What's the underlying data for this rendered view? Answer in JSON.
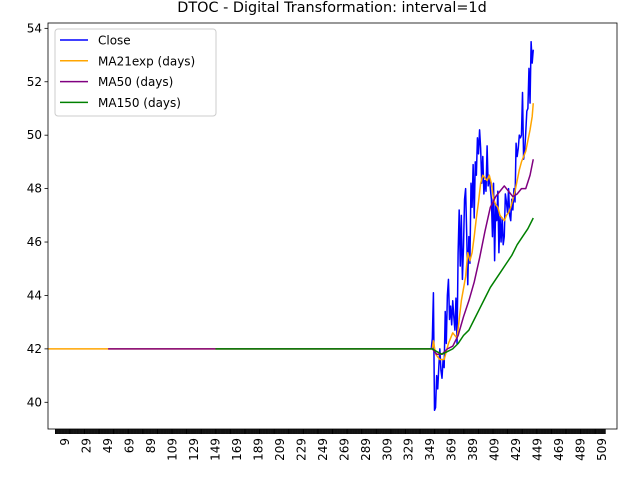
{
  "chart_data": {
    "type": "line",
    "title": "DTOC - Digital Transformation: interval=1d",
    "xlabel": "",
    "ylabel": "",
    "xlim": [
      -7,
      523
    ],
    "ylim": [
      39,
      54.2
    ],
    "yticks": [
      40,
      42,
      44,
      46,
      48,
      50,
      52,
      54
    ],
    "xticks": [
      9,
      29,
      49,
      69,
      89,
      109,
      129,
      149,
      169,
      189,
      209,
      229,
      249,
      269,
      289,
      309,
      329,
      349,
      369,
      389,
      409,
      429,
      449,
      469,
      489,
      509
    ],
    "legend": {
      "placement": "top-left"
    },
    "grid": false,
    "series": [
      {
        "name": "Close",
        "color": "#0000ff",
        "points": [
          [
            350,
            42.0
          ],
          [
            351,
            42.4
          ],
          [
            352,
            44.1
          ],
          [
            353,
            39.7
          ],
          [
            354,
            39.8
          ],
          [
            355,
            41.0
          ],
          [
            356,
            40.5
          ],
          [
            357,
            41.3
          ],
          [
            358,
            42.0
          ],
          [
            359,
            41.2
          ],
          [
            360,
            40.9
          ],
          [
            361,
            41.6
          ],
          [
            362,
            41.3
          ],
          [
            363,
            43.4
          ],
          [
            364,
            42.2
          ],
          [
            365,
            44.0
          ],
          [
            366,
            44.6
          ],
          [
            367,
            43.1
          ],
          [
            368,
            43.6
          ],
          [
            369,
            42.9
          ],
          [
            370,
            43.8
          ],
          [
            371,
            43.2
          ],
          [
            372,
            42.7
          ],
          [
            373,
            43.9
          ],
          [
            374,
            42.2
          ],
          [
            375,
            45.6
          ],
          [
            376,
            47.2
          ],
          [
            377,
            45.1
          ],
          [
            378,
            47.0
          ],
          [
            379,
            44.6
          ],
          [
            380,
            45.8
          ],
          [
            381,
            47.6
          ],
          [
            382,
            48.0
          ],
          [
            383,
            46.3
          ],
          [
            384,
            44.4
          ],
          [
            385,
            46.2
          ],
          [
            386,
            45.2
          ],
          [
            387,
            48.2
          ],
          [
            388,
            47.3
          ],
          [
            389,
            48.9
          ],
          [
            390,
            46.9
          ],
          [
            391,
            49.0
          ],
          [
            392,
            48.5
          ],
          [
            393,
            49.9
          ],
          [
            394,
            49.3
          ],
          [
            395,
            50.2
          ],
          [
            396,
            49.5
          ],
          [
            397,
            48.2
          ],
          [
            398,
            49.2
          ],
          [
            399,
            47.8
          ],
          [
            400,
            48.3
          ],
          [
            401,
            47.9
          ],
          [
            402,
            49.6
          ],
          [
            403,
            48.1
          ],
          [
            404,
            48.5
          ],
          [
            405,
            48.0
          ],
          [
            406,
            47.6
          ],
          [
            407,
            46.2
          ],
          [
            408,
            48.2
          ],
          [
            409,
            45.3
          ],
          [
            410,
            47.4
          ],
          [
            411,
            46.8
          ],
          [
            412,
            47.9
          ],
          [
            413,
            45.6
          ],
          [
            414,
            47.0
          ],
          [
            415,
            46.0
          ],
          [
            416,
            46.9
          ],
          [
            417,
            45.9
          ],
          [
            418,
            46.2
          ],
          [
            419,
            47.8
          ],
          [
            420,
            47.5
          ],
          [
            421,
            47.1
          ],
          [
            422,
            48.0
          ],
          [
            423,
            47.0
          ],
          [
            424,
            46.8
          ],
          [
            425,
            47.6
          ],
          [
            426,
            47.2
          ],
          [
            427,
            48.0
          ],
          [
            428,
            47.5
          ],
          [
            429,
            49.7
          ],
          [
            430,
            49.2
          ],
          [
            431,
            49.5
          ],
          [
            432,
            50.0
          ],
          [
            433,
            49.9
          ],
          [
            434,
            50.0
          ],
          [
            435,
            51.6
          ],
          [
            436,
            49.1
          ],
          [
            437,
            49.4
          ],
          [
            438,
            50.1
          ],
          [
            439,
            50.9
          ],
          [
            440,
            51.0
          ],
          [
            441,
            52.5
          ],
          [
            442,
            51.2
          ],
          [
            443,
            53.5
          ],
          [
            444,
            52.7
          ],
          [
            445,
            53.2
          ]
        ]
      },
      {
        "name": "MA21exp (days)",
        "color": "#ffa500",
        "points": [
          [
            -7,
            42.0
          ],
          [
            49,
            42.0
          ],
          [
            351,
            42.0
          ],
          [
            352,
            42.3
          ],
          [
            354,
            41.8
          ],
          [
            358,
            41.6
          ],
          [
            362,
            41.6
          ],
          [
            366,
            42.2
          ],
          [
            370,
            42.6
          ],
          [
            374,
            42.4
          ],
          [
            378,
            43.8
          ],
          [
            382,
            44.7
          ],
          [
            384,
            45.6
          ],
          [
            386,
            45.3
          ],
          [
            388,
            45.6
          ],
          [
            390,
            46.2
          ],
          [
            392,
            46.9
          ],
          [
            394,
            47.5
          ],
          [
            396,
            48.2
          ],
          [
            398,
            48.5
          ],
          [
            400,
            48.4
          ],
          [
            402,
            48.3
          ],
          [
            404,
            48.5
          ],
          [
            406,
            48.2
          ],
          [
            408,
            47.6
          ],
          [
            410,
            47.4
          ],
          [
            412,
            47.3
          ],
          [
            414,
            47.0
          ],
          [
            416,
            46.9
          ],
          [
            418,
            46.8
          ],
          [
            420,
            47.0
          ],
          [
            422,
            47.1
          ],
          [
            424,
            47.3
          ],
          [
            426,
            47.6
          ],
          [
            428,
            47.9
          ],
          [
            430,
            48.3
          ],
          [
            432,
            48.7
          ],
          [
            434,
            49.0
          ],
          [
            436,
            49.2
          ],
          [
            438,
            49.4
          ],
          [
            440,
            49.8
          ],
          [
            442,
            50.2
          ],
          [
            444,
            50.7
          ],
          [
            445,
            51.2
          ]
        ]
      },
      {
        "name": "MA50 (days)",
        "color": "#800080",
        "points": [
          [
            49,
            42.0
          ],
          [
            351,
            42.0
          ],
          [
            355,
            41.8
          ],
          [
            360,
            41.8
          ],
          [
            365,
            42.0
          ],
          [
            370,
            42.1
          ],
          [
            375,
            42.5
          ],
          [
            380,
            43.2
          ],
          [
            385,
            43.8
          ],
          [
            390,
            44.5
          ],
          [
            395,
            45.4
          ],
          [
            400,
            46.4
          ],
          [
            405,
            47.3
          ],
          [
            410,
            47.7
          ],
          [
            414,
            47.9
          ],
          [
            418,
            48.1
          ],
          [
            422,
            47.9
          ],
          [
            426,
            47.7
          ],
          [
            430,
            47.8
          ],
          [
            434,
            48.0
          ],
          [
            438,
            48.0
          ],
          [
            442,
            48.5
          ],
          [
            445,
            49.1
          ]
        ]
      },
      {
        "name": "MA150 (days)",
        "color": "#008000",
        "points": [
          [
            149,
            42.0
          ],
          [
            351,
            42.0
          ],
          [
            355,
            41.9
          ],
          [
            360,
            41.8
          ],
          [
            365,
            41.9
          ],
          [
            370,
            42.0
          ],
          [
            375,
            42.2
          ],
          [
            380,
            42.5
          ],
          [
            385,
            42.7
          ],
          [
            390,
            43.1
          ],
          [
            395,
            43.5
          ],
          [
            400,
            43.9
          ],
          [
            405,
            44.3
          ],
          [
            410,
            44.6
          ],
          [
            415,
            44.9
          ],
          [
            420,
            45.2
          ],
          [
            425,
            45.5
          ],
          [
            430,
            45.9
          ],
          [
            435,
            46.2
          ],
          [
            440,
            46.5
          ],
          [
            445,
            46.9
          ]
        ]
      }
    ]
  }
}
